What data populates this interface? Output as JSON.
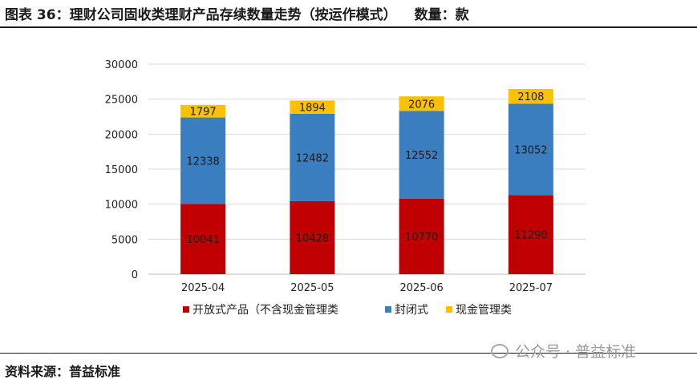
{
  "header": {
    "title": "图表 36：理财公司固收类理财产品存续数量走势（按运作模式）",
    "unit": "数量：款"
  },
  "footer": {
    "source": "资料来源：普益标准",
    "watermark": "公众号 · 普益标准"
  },
  "chart_data": {
    "type": "bar",
    "stacked": true,
    "categories": [
      "2025-04",
      "2025-05",
      "2025-06",
      "2025-07"
    ],
    "series": [
      {
        "name": "开放式产品（不含现金管理类",
        "values": [
          10041,
          10428,
          10770,
          11290
        ],
        "color": "#c00000"
      },
      {
        "name": "封闭式",
        "values": [
          12338,
          12482,
          12552,
          13052
        ],
        "color": "#3a7ebf"
      },
      {
        "name": "现金管理类",
        "values": [
          1797,
          1894,
          2076,
          2108
        ],
        "color": "#ffc000"
      }
    ],
    "ylim": [
      0,
      30000
    ],
    "yticks": [
      0,
      5000,
      10000,
      15000,
      20000,
      25000,
      30000
    ],
    "grid": true,
    "legend": "bottom"
  }
}
